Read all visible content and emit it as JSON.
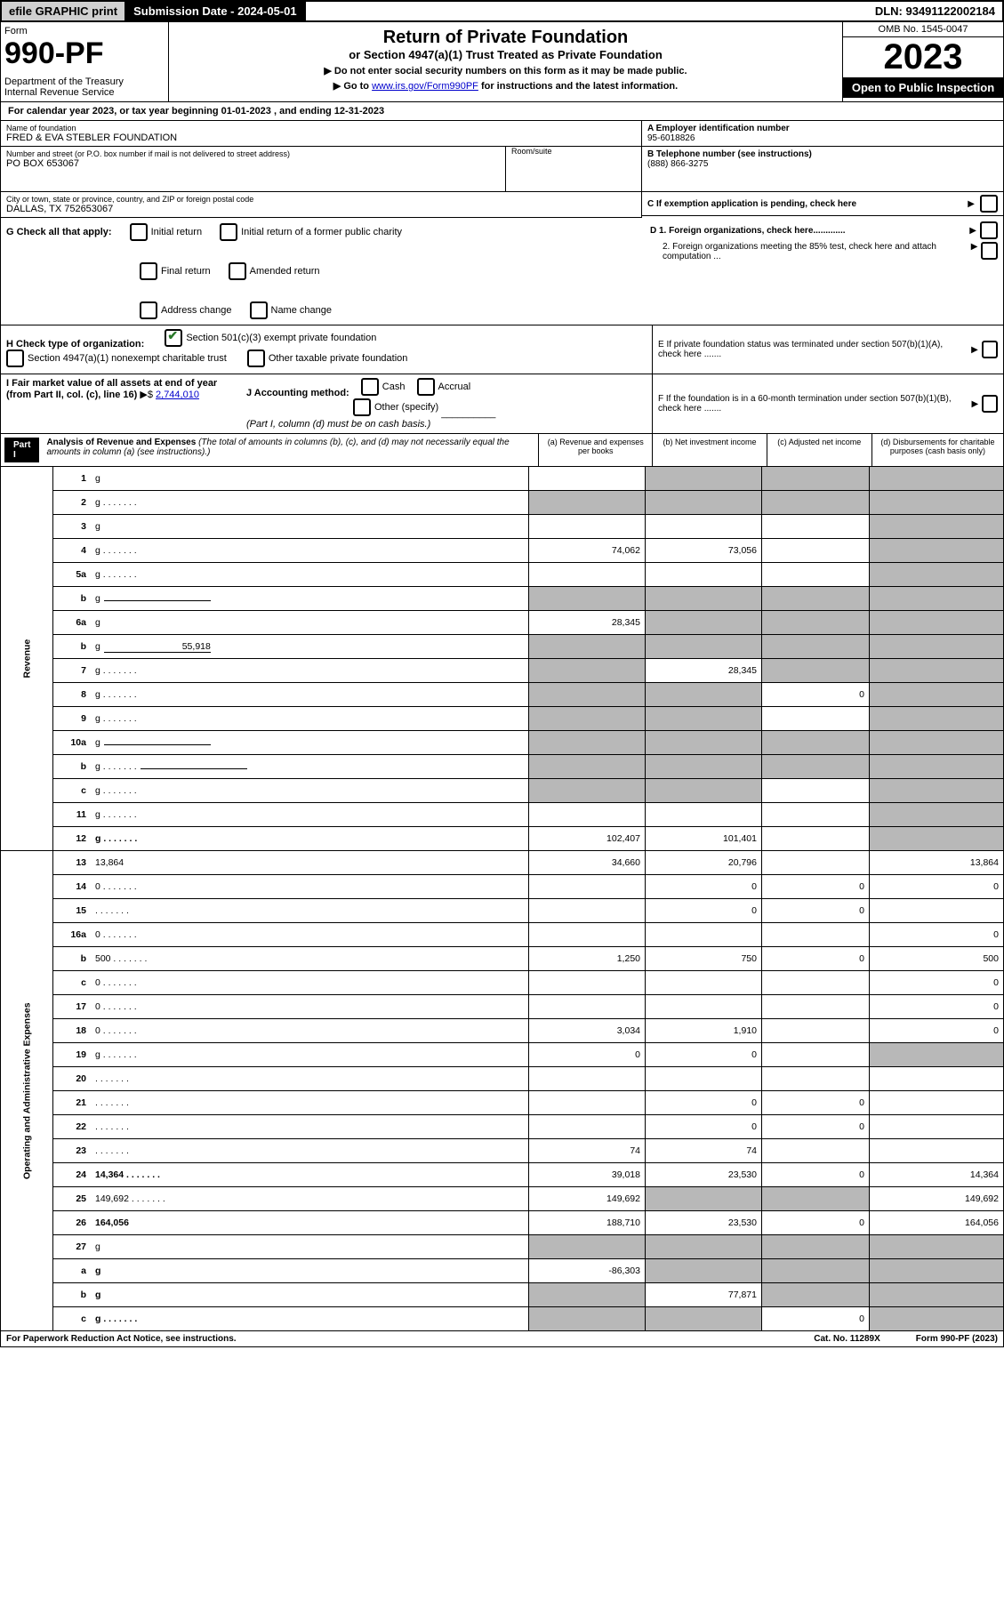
{
  "topbar": {
    "efile": "efile GRAPHIC print",
    "submission": "Submission Date - 2024-05-01",
    "dln": "DLN: 93491122002184"
  },
  "header": {
    "form_word": "Form",
    "form_num": "990-PF",
    "dept": "Department of the Treasury\nInternal Revenue Service",
    "title": "Return of Private Foundation",
    "subtitle": "or Section 4947(a)(1) Trust Treated as Private Foundation",
    "note1": "▶ Do not enter social security numbers on this form as it may be made public.",
    "note2_pre": "▶ Go to ",
    "note2_link": "www.irs.gov/Form990PF",
    "note2_post": " for instructions and the latest information.",
    "omb": "OMB No. 1545-0047",
    "year": "2023",
    "open": "Open to Public Inspection"
  },
  "calyear": "For calendar year 2023, or tax year beginning 01-01-2023           , and ending 12-31-2023",
  "info": {
    "name_lbl": "Name of foundation",
    "name": "FRED & EVA STEBLER FOUNDATION",
    "addr_lbl": "Number and street (or P.O. box number if mail is not delivered to street address)",
    "addr": "PO BOX 653067",
    "room_lbl": "Room/suite",
    "city_lbl": "City or town, state or province, country, and ZIP or foreign postal code",
    "city": "DALLAS, TX  752653067",
    "a_lbl": "A Employer identification number",
    "a_val": "95-6018826",
    "b_lbl": "B Telephone number (see instructions)",
    "b_val": "(888) 866-3275",
    "c_lbl": "C If exemption application is pending, check here",
    "d1": "D 1. Foreign organizations, check here.............",
    "d2": "2. Foreign organizations meeting the 85% test, check here and attach computation ...",
    "e": "E  If private foundation status was terminated under section 507(b)(1)(A), check here .......",
    "f": "F  If the foundation is in a 60-month termination under section 507(b)(1)(B), check here ......."
  },
  "g": {
    "label": "G Check all that apply:",
    "opts": [
      "Initial return",
      "Final return",
      "Address change",
      "Initial return of a former public charity",
      "Amended return",
      "Name change"
    ]
  },
  "h": {
    "label": "H Check type of organization:",
    "opt1": "Section 501(c)(3) exempt private foundation",
    "opt2": "Section 4947(a)(1) nonexempt charitable trust",
    "opt3": "Other taxable private foundation"
  },
  "i": {
    "label": "I Fair market value of all assets at end of year (from Part II, col. (c), line 16)",
    "val": "2,744,010"
  },
  "j": {
    "label": "J Accounting method:",
    "opts": [
      "Cash",
      "Accrual",
      "Other (specify)"
    ],
    "note": "(Part I, column (d) must be on cash basis.)"
  },
  "part1": {
    "tag": "Part I",
    "title": "Analysis of Revenue and Expenses",
    "title_note": "(The total of amounts in columns (b), (c), and (d) may not necessarily equal the amounts in column (a) (see instructions).)",
    "cols": {
      "a": "(a)   Revenue and expenses per books",
      "b": "(b)   Net investment income",
      "c": "(c)   Adjusted net income",
      "d": "(d)   Disbursements for charitable purposes (cash basis only)"
    }
  },
  "side": {
    "rev": "Revenue",
    "opex": "Operating and Administrative Expenses"
  },
  "lines": [
    {
      "n": "1",
      "d": "g",
      "a": "",
      "b": "g",
      "c": "g"
    },
    {
      "n": "2",
      "d": "g",
      "dots": true,
      "a": "g",
      "b": "g",
      "c": "g"
    },
    {
      "n": "3",
      "d": "g",
      "a": "",
      "b": "",
      "c": ""
    },
    {
      "n": "4",
      "d": "g",
      "dots": true,
      "a": "74,062",
      "b": "73,056",
      "c": ""
    },
    {
      "n": "5a",
      "d": "g",
      "dots": true,
      "a": "",
      "b": "",
      "c": ""
    },
    {
      "n": "b",
      "d": "g",
      "uline": true,
      "a": "g",
      "b": "g",
      "c": "g"
    },
    {
      "n": "6a",
      "d": "g",
      "a": "28,345",
      "b": "g",
      "c": "g"
    },
    {
      "n": "b",
      "d": "g",
      "uline": true,
      "uv": "55,918",
      "a": "g",
      "b": "g",
      "c": "g"
    },
    {
      "n": "7",
      "d": "g",
      "dots": true,
      "a": "g",
      "b": "28,345",
      "c": "g"
    },
    {
      "n": "8",
      "d": "g",
      "dots": true,
      "a": "g",
      "b": "g",
      "c": "0"
    },
    {
      "n": "9",
      "d": "g",
      "dots": true,
      "a": "g",
      "b": "g",
      "c": ""
    },
    {
      "n": "10a",
      "d": "g",
      "uline": true,
      "a": "g",
      "b": "g",
      "c": "g"
    },
    {
      "n": "b",
      "d": "g",
      "dots": true,
      "uline": true,
      "a": "g",
      "b": "g",
      "c": "g"
    },
    {
      "n": "c",
      "d": "g",
      "dots": true,
      "a": "g",
      "b": "g",
      "c": ""
    },
    {
      "n": "11",
      "d": "g",
      "dots": true,
      "a": "",
      "b": "",
      "c": ""
    },
    {
      "n": "12",
      "d": "g",
      "dots": true,
      "bold": true,
      "a": "102,407",
      "b": "101,401",
      "c": ""
    },
    {
      "n": "13",
      "d": "13,864",
      "a": "34,660",
      "b": "20,796",
      "c": ""
    },
    {
      "n": "14",
      "d": "0",
      "dots": true,
      "a": "",
      "b": "0",
      "c": "0"
    },
    {
      "n": "15",
      "d": "",
      "dots": true,
      "a": "",
      "b": "0",
      "c": "0"
    },
    {
      "n": "16a",
      "d": "0",
      "dots": true,
      "a": "",
      "b": "",
      "c": ""
    },
    {
      "n": "b",
      "d": "500",
      "dots": true,
      "a": "1,250",
      "b": "750",
      "c": "0"
    },
    {
      "n": "c",
      "d": "0",
      "dots": true,
      "a": "",
      "b": "",
      "c": ""
    },
    {
      "n": "17",
      "d": "0",
      "dots": true,
      "a": "",
      "b": "",
      "c": ""
    },
    {
      "n": "18",
      "d": "0",
      "dots": true,
      "a": "3,034",
      "b": "1,910",
      "c": ""
    },
    {
      "n": "19",
      "d": "g",
      "dots": true,
      "a": "0",
      "b": "0",
      "c": ""
    },
    {
      "n": "20",
      "d": "",
      "dots": true,
      "a": "",
      "b": "",
      "c": ""
    },
    {
      "n": "21",
      "d": "",
      "dots": true,
      "a": "",
      "b": "0",
      "c": "0"
    },
    {
      "n": "22",
      "d": "",
      "dots": true,
      "a": "",
      "b": "0",
      "c": "0"
    },
    {
      "n": "23",
      "d": "",
      "dots": true,
      "a": "74",
      "b": "74",
      "c": ""
    },
    {
      "n": "24",
      "d": "14,364",
      "dots": true,
      "bold": true,
      "a": "39,018",
      "b": "23,530",
      "c": "0"
    },
    {
      "n": "25",
      "d": "149,692",
      "dots": true,
      "a": "149,692",
      "b": "g",
      "c": "g"
    },
    {
      "n": "26",
      "d": "164,056",
      "bold": true,
      "a": "188,710",
      "b": "23,530",
      "c": "0"
    },
    {
      "n": "27",
      "d": "g",
      "a": "g",
      "b": "g",
      "c": "g"
    },
    {
      "n": "a",
      "d": "g",
      "bold": true,
      "a": "-86,303",
      "b": "g",
      "c": "g"
    },
    {
      "n": "b",
      "d": "g",
      "bold": true,
      "a": "g",
      "b": "77,871",
      "c": "g"
    },
    {
      "n": "c",
      "d": "g",
      "bold": true,
      "dots": true,
      "a": "g",
      "b": "g",
      "c": "0"
    }
  ],
  "foot": {
    "left": "For Paperwork Reduction Act Notice, see instructions.",
    "mid": "Cat. No. 11289X",
    "right": "Form 990-PF (2023)"
  }
}
